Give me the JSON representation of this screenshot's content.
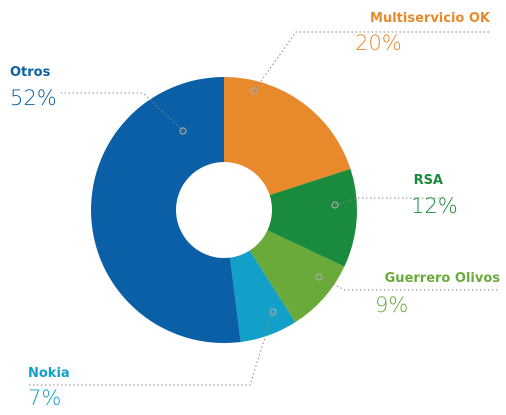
{
  "chart_data": {
    "type": "pie",
    "categories": [
      "Multiservicio OK",
      "RSA",
      "Guerrero Olivos",
      "Nokia",
      "Otros"
    ],
    "values": [
      20,
      12,
      9,
      7,
      52
    ],
    "value_labels": [
      "20%",
      "12%",
      "9%",
      "7%",
      "52%"
    ],
    "colors": [
      "#e8892b",
      "#1a8a3c",
      "#6aaa3a",
      "#12a0c8",
      "#0a5fa6"
    ]
  }
}
